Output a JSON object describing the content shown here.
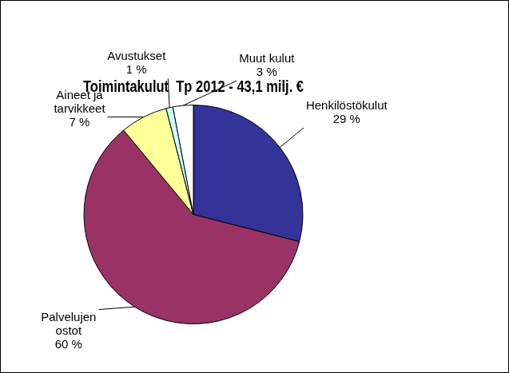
{
  "chart_data": {
    "type": "pie",
    "title": "Toimintakulut  Tp 2012 - 43,1 milj. €",
    "categories": [
      "Henkilöstökulut",
      "Palvelujen ostot",
      "Aineet ja tarvikkeet",
      "Avustukset",
      "Muut kulut"
    ],
    "values": [
      29,
      60,
      7,
      1,
      3
    ],
    "value_labels": [
      "29 %",
      "60 %",
      "7 %",
      "1 %",
      "3 %"
    ],
    "colors": [
      "#333399",
      "#993366",
      "#ffff99",
      "#ccffff",
      "#ffffff"
    ],
    "data_labels": true
  }
}
